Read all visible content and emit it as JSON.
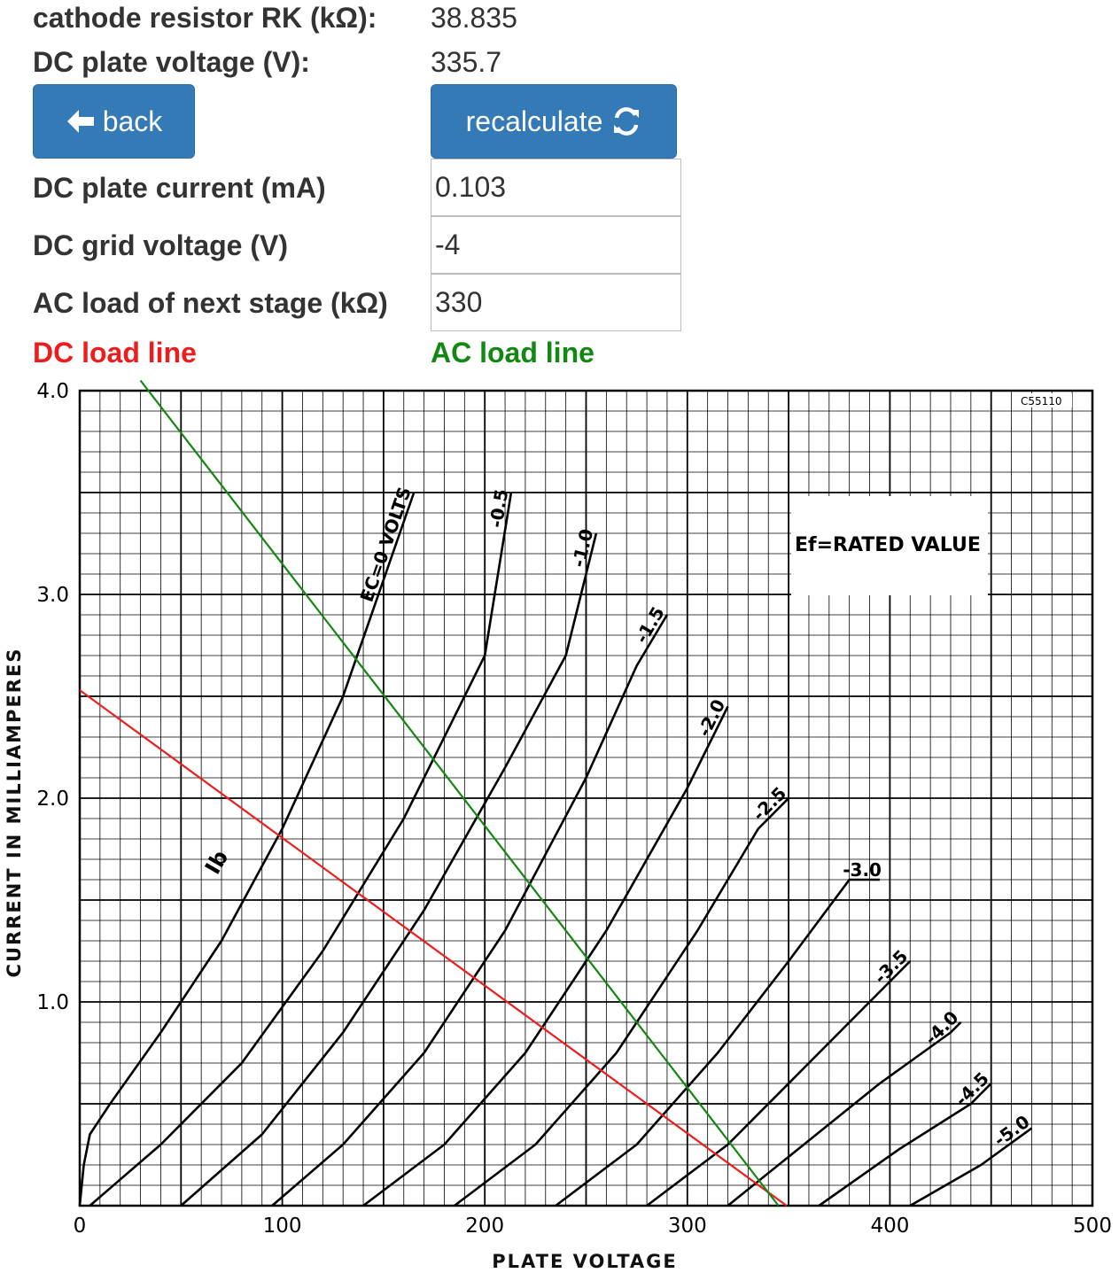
{
  "results": {
    "cathode_resistor_label": "cathode resistor RK (kΩ):",
    "cathode_resistor_value": "38.835",
    "plate_voltage_label": "DC plate voltage (V):",
    "plate_voltage_value": "335.7"
  },
  "buttons": {
    "back_label": "back",
    "back_icon": "arrow-left-icon",
    "recalculate_label": "recalculate",
    "recalculate_icon": "refresh-icon"
  },
  "inputs": {
    "plate_current_label": "DC plate current (mA)",
    "plate_current_value": "0.103",
    "grid_voltage_label": "DC grid voltage (V)",
    "grid_voltage_value": "-4",
    "ac_load_label": "AC load of next stage (kΩ)",
    "ac_load_value": "330"
  },
  "legend": {
    "dc_load_line": "DC load line",
    "dc_color": "#ee1c1c",
    "ac_load_line": "AC load line",
    "ac_color": "#118811"
  },
  "chart_data": {
    "type": "line",
    "xlabel": "PLATE VOLTAGE",
    "ylabel": "CURRENT IN MILLIAMPERES",
    "xlim": [
      0,
      500
    ],
    "ylim": [
      0,
      4.0
    ],
    "x_ticks": [
      "0",
      "100",
      "200",
      "300",
      "400",
      "500"
    ],
    "y_ticks": [
      "1.0",
      "2.0",
      "3.0",
      "4.0"
    ],
    "grid": true,
    "code": "C55110",
    "annotation": "Ef=RATED VALUE",
    "plate_current_label": "Ib",
    "grid_curves": [
      {
        "label": "EC=0 VOLTS",
        "points": [
          [
            0,
            0
          ],
          [
            2,
            0.2
          ],
          [
            5,
            0.35
          ],
          [
            15,
            0.5
          ],
          [
            40,
            0.85
          ],
          [
            70,
            1.3
          ],
          [
            100,
            1.85
          ],
          [
            130,
            2.5
          ],
          [
            165,
            3.5
          ]
        ]
      },
      {
        "label": "-0.5",
        "points": [
          [
            5,
            0
          ],
          [
            40,
            0.3
          ],
          [
            80,
            0.7
          ],
          [
            120,
            1.25
          ],
          [
            160,
            1.9
          ],
          [
            200,
            2.7
          ],
          [
            213,
            3.5
          ]
        ]
      },
      {
        "label": "-1.0",
        "points": [
          [
            50,
            0
          ],
          [
            90,
            0.35
          ],
          [
            130,
            0.85
          ],
          [
            170,
            1.45
          ],
          [
            210,
            2.15
          ],
          [
            240,
            2.7
          ],
          [
            255,
            3.3
          ]
        ]
      },
      {
        "label": "-1.5",
        "points": [
          [
            95,
            0
          ],
          [
            130,
            0.3
          ],
          [
            170,
            0.75
          ],
          [
            210,
            1.35
          ],
          [
            250,
            2.1
          ],
          [
            275,
            2.65
          ],
          [
            290,
            2.9
          ]
        ]
      },
      {
        "label": "-2.0",
        "points": [
          [
            140,
            0
          ],
          [
            180,
            0.3
          ],
          [
            220,
            0.75
          ],
          [
            260,
            1.35
          ],
          [
            300,
            2.05
          ],
          [
            320,
            2.45
          ]
        ]
      },
      {
        "label": "-2.5",
        "points": [
          [
            185,
            0
          ],
          [
            225,
            0.3
          ],
          [
            265,
            0.75
          ],
          [
            305,
            1.35
          ],
          [
            335,
            1.85
          ],
          [
            350,
            2.0
          ]
        ]
      },
      {
        "label": "-3.0",
        "points": [
          [
            235,
            0
          ],
          [
            275,
            0.3
          ],
          [
            315,
            0.75
          ],
          [
            350,
            1.2
          ],
          [
            380,
            1.6
          ],
          [
            395,
            1.6
          ]
        ]
      },
      {
        "label": "-3.5",
        "points": [
          [
            280,
            0
          ],
          [
            320,
            0.3
          ],
          [
            360,
            0.7
          ],
          [
            395,
            1.05
          ],
          [
            410,
            1.2
          ]
        ]
      },
      {
        "label": "-4.0",
        "points": [
          [
            320,
            0
          ],
          [
            355,
            0.28
          ],
          [
            395,
            0.6
          ],
          [
            430,
            0.85
          ],
          [
            435,
            0.9
          ]
        ]
      },
      {
        "label": "-4.5",
        "points": [
          [
            365,
            0
          ],
          [
            405,
            0.28
          ],
          [
            440,
            0.5
          ],
          [
            450,
            0.6
          ]
        ]
      },
      {
        "label": "-5.0",
        "points": [
          [
            410,
            0
          ],
          [
            445,
            0.2
          ],
          [
            470,
            0.38
          ]
        ]
      }
    ],
    "series": [
      {
        "name": "DC load line",
        "points": [
          [
            0,
            2.53
          ],
          [
            349,
            0
          ]
        ]
      },
      {
        "name": "AC load line",
        "points": [
          [
            30,
            4.05
          ],
          [
            345,
            0
          ]
        ]
      }
    ]
  }
}
